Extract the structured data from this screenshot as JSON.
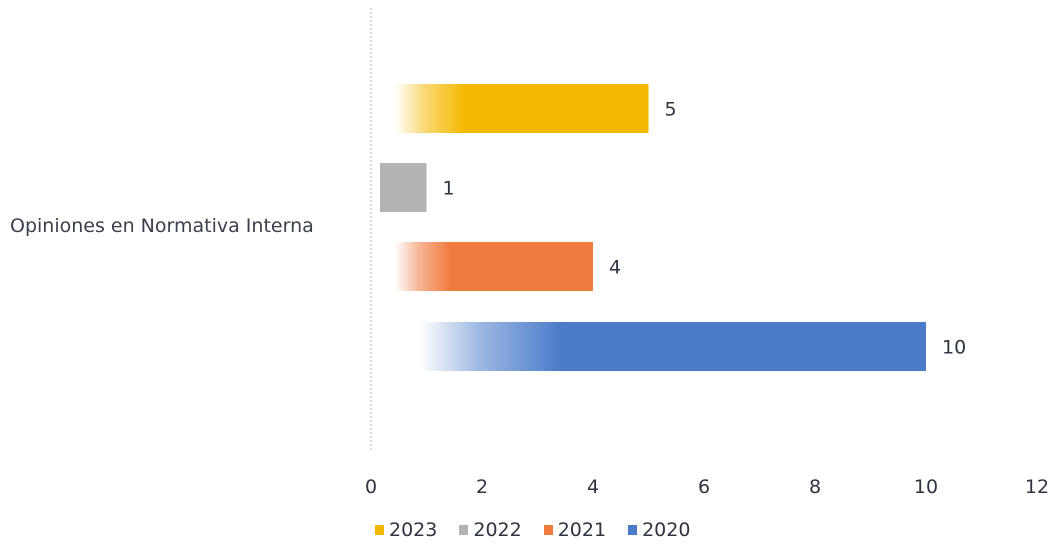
{
  "chart_data": {
    "type": "bar",
    "orientation": "horizontal",
    "categories": [
      "Opiniones en Normativa Interna"
    ],
    "series": [
      {
        "name": "2023",
        "values": [
          5
        ],
        "color": "#f5b800"
      },
      {
        "name": "2022",
        "values": [
          1
        ],
        "color": "#b3b3b3"
      },
      {
        "name": "2021",
        "values": [
          4
        ],
        "color": "#f07b3f"
      },
      {
        "name": "2020",
        "values": [
          10
        ],
        "color": "#4a7cc9"
      }
    ],
    "xlim": [
      0,
      12
    ],
    "xticks": [
      "0",
      "2",
      "4",
      "6",
      "8",
      "10",
      "12"
    ],
    "title": "",
    "xlabel": "",
    "ylabel": "",
    "grid": false,
    "legend_position": "bottom"
  }
}
